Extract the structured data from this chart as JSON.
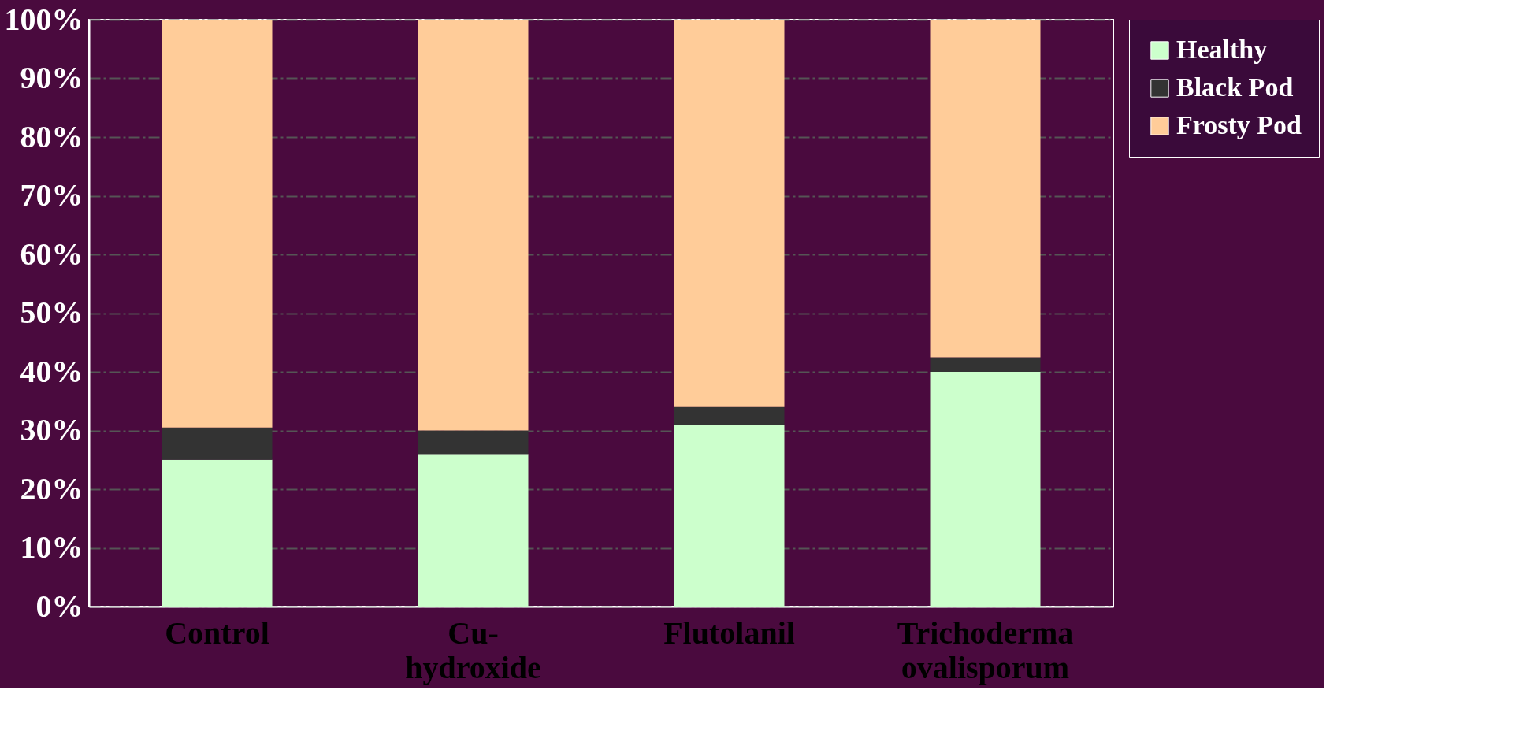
{
  "chart_data": {
    "type": "bar",
    "stacked": true,
    "categories": [
      "Control",
      "Cu-hydroxide",
      "Flutolanil",
      "Trichoderma ovalisporum"
    ],
    "series": [
      {
        "name": "Healthy",
        "color": "#ccffcc",
        "values": [
          25,
          26,
          31,
          40
        ]
      },
      {
        "name": "Black Pod",
        "color": "#333333",
        "values": [
          5.5,
          4,
          3,
          2.5
        ]
      },
      {
        "name": "Frosty Pod",
        "color": "#ffcc99",
        "values": [
          69.5,
          70,
          66,
          57.5
        ]
      }
    ],
    "ylim": [
      0,
      100
    ],
    "yticks": [
      {
        "value": 0,
        "label": "0%"
      },
      {
        "value": 10,
        "label": "10%"
      },
      {
        "value": 20,
        "label": "20%"
      },
      {
        "value": 30,
        "label": "30%"
      },
      {
        "value": 40,
        "label": "40%"
      },
      {
        "value": 50,
        "label": "50%"
      },
      {
        "value": 60,
        "label": "60%"
      },
      {
        "value": 70,
        "label": "70%"
      },
      {
        "value": 80,
        "label": "80%"
      },
      {
        "value": 90,
        "label": "90%"
      },
      {
        "value": 100,
        "label": "100%"
      }
    ],
    "grid": "y",
    "legend": "right"
  }
}
